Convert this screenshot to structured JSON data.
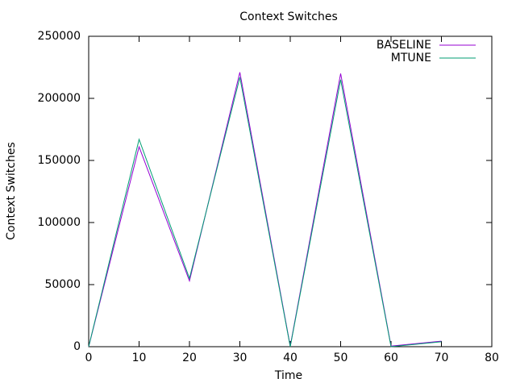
{
  "chart_data": {
    "type": "line",
    "title": "Context Switches",
    "x_label": "Time",
    "y_label": "Context Switches",
    "x": [
      0,
      10,
      20,
      30,
      40,
      50,
      60,
      70
    ],
    "series": [
      {
        "name": "BASELINE",
        "color": "#9400d3",
        "values": [
          0,
          161000,
          53000,
          221000,
          500,
          220000,
          500,
          4500
        ]
      },
      {
        "name": "MTUNE",
        "color": "#009e73",
        "values": [
          0,
          167000,
          55000,
          217000,
          0,
          215000,
          0,
          4000
        ]
      }
    ],
    "xlim": [
      0,
      80
    ],
    "xticks": [
      0,
      10,
      20,
      30,
      40,
      50,
      60,
      70,
      80
    ],
    "ylim": [
      0,
      250000
    ],
    "yticks": [
      0,
      50000,
      100000,
      150000,
      200000,
      250000
    ],
    "grid": false,
    "legend": "top-right"
  }
}
